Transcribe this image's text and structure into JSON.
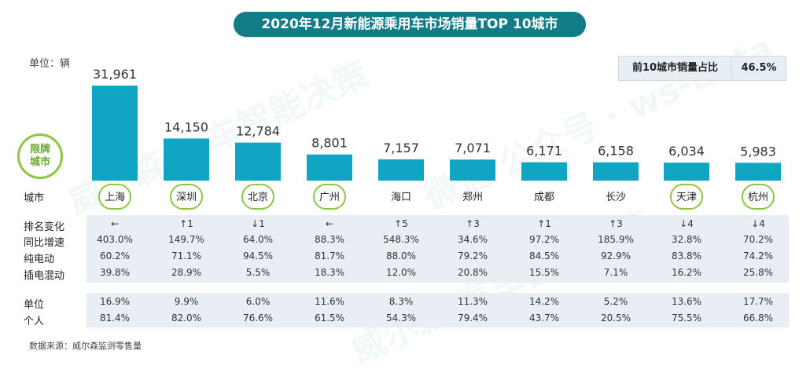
{
  "title": "2020年12月新能源乘用车市场销量TOP 10城市",
  "unit_label": "单位：辆",
  "share": {
    "label": "前10城市销量占比",
    "value": "46.5%"
  },
  "badge": {
    "line1": "限牌",
    "line2": "城市"
  },
  "watermark": [
    "威尔森 汽车智能决策",
    "微信 公众号 · ws-data"
  ],
  "row_labels": {
    "city": "城市",
    "rank_change": "排名变化",
    "yoy": "同比增速",
    "bev": "纯电动",
    "phev": "插电混动",
    "org": "单位",
    "personal": "个人"
  },
  "source": "数据来源：威尔森监测零售量",
  "colors": {
    "bar": "#10a5c2",
    "title_bg": "#137c86",
    "limit_ring": "#8dc63f",
    "band": "#e8eef4"
  },
  "chart_data": {
    "type": "bar",
    "title": "2020年12月新能源乘用车市场销量TOP 10城市",
    "ylabel": "单位：辆",
    "ylim": [
      0,
      31961
    ],
    "categories": [
      "上海",
      "深圳",
      "北京",
      "广州",
      "海口",
      "郑州",
      "成都",
      "长沙",
      "天津",
      "杭州"
    ],
    "values": [
      31961,
      14150,
      12784,
      8801,
      7157,
      7071,
      6171,
      6158,
      6034,
      5983
    ],
    "value_labels": [
      "31,961",
      "14,150",
      "12,784",
      "8,801",
      "7,157",
      "7,071",
      "6,171",
      "6,158",
      "6,034",
      "5,983"
    ],
    "limited_plate": [
      true,
      true,
      true,
      true,
      false,
      false,
      false,
      false,
      true,
      true
    ],
    "annotations": {
      "rank_change": [
        "←",
        "↑1",
        "↓1",
        "←",
        "↑5",
        "↑3",
        "↑1",
        "↑3",
        "↓4",
        "↓4"
      ],
      "yoy_growth": [
        "403.0%",
        "149.7%",
        "64.0%",
        "88.3%",
        "548.3%",
        "34.6%",
        "97.2%",
        "185.9%",
        "32.8%",
        "70.2%"
      ],
      "bev_share": [
        "60.2%",
        "71.1%",
        "94.5%",
        "81.7%",
        "88.0%",
        "79.2%",
        "84.5%",
        "92.9%",
        "83.8%",
        "74.2%"
      ],
      "phev_share": [
        "39.8%",
        "28.9%",
        "5.5%",
        "18.3%",
        "12.0%",
        "20.8%",
        "15.5%",
        "7.1%",
        "16.2%",
        "25.8%"
      ],
      "org_share": [
        "16.9%",
        "9.9%",
        "6.0%",
        "11.6%",
        "8.3%",
        "11.3%",
        "14.2%",
        "5.2%",
        "13.6%",
        "17.7%"
      ],
      "personal_share": [
        "81.4%",
        "82.0%",
        "76.6%",
        "61.5%",
        "54.3%",
        "79.4%",
        "43.7%",
        "20.5%",
        "75.5%",
        "66.8%"
      ]
    }
  }
}
